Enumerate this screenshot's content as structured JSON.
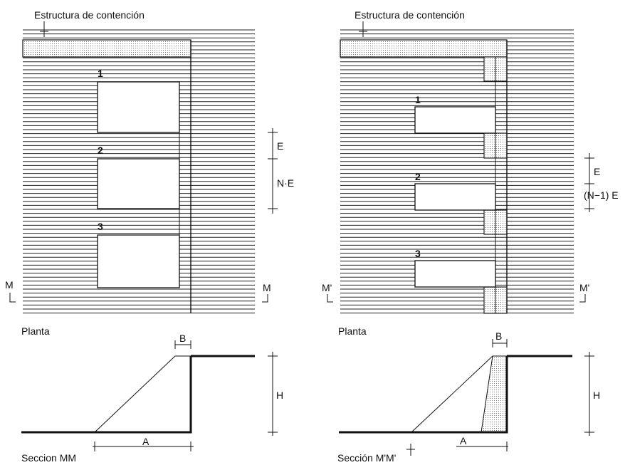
{
  "left": {
    "title": "Estructura de contención",
    "stages": [
      "1",
      "2",
      "3"
    ],
    "dim_e": "E",
    "dim_ne": "N·E",
    "section_mark": "M",
    "plan_label": "Planta",
    "dim_b": "B",
    "dim_h": "H",
    "dim_a": "A",
    "section_label": "Seccion MM"
  },
  "right": {
    "title": "Estructura de contención",
    "stages": [
      "1",
      "2",
      "3"
    ],
    "dim_e": "E",
    "dim_ne": "(N−1) E",
    "section_mark": "M'",
    "plan_label": "Planta",
    "dim_b": "B",
    "dim_h": "H",
    "dim_a": "A",
    "section_label": "Sección M'M'"
  },
  "colors": {
    "ink": "#111111",
    "stipple": "#555555",
    "paper": "#ffffff"
  }
}
